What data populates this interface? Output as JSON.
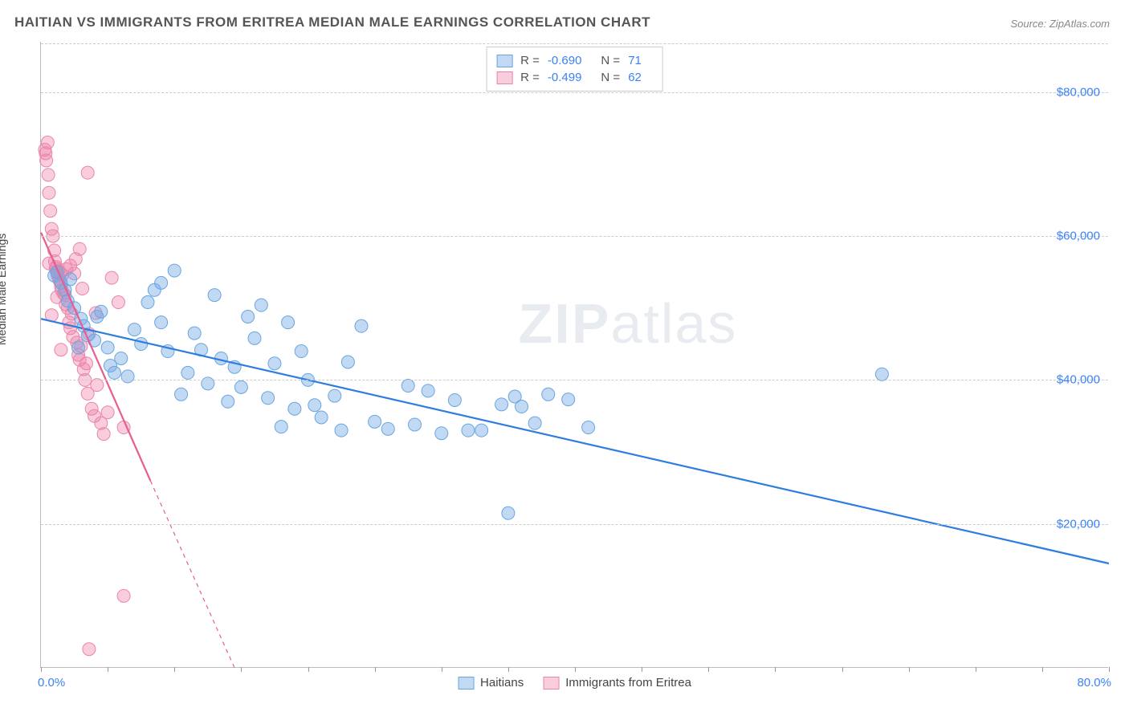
{
  "title": "HAITIAN VS IMMIGRANTS FROM ERITREA MEDIAN MALE EARNINGS CORRELATION CHART",
  "source": "Source: ZipAtlas.com",
  "ylabel": "Median Male Earnings",
  "watermark_zip": "ZIP",
  "watermark_atlas": "atlas",
  "chart": {
    "type": "scatter",
    "xlim": [
      0,
      80
    ],
    "ylim": [
      0,
      87000
    ],
    "x_axis_min_label": "0.0%",
    "x_axis_max_label": "80.0%",
    "xtick_positions": [
      0,
      5,
      10,
      15,
      20,
      25,
      30,
      35,
      40,
      45,
      50,
      55,
      60,
      65,
      70,
      75,
      80
    ],
    "ytick_values": [
      20000,
      40000,
      60000,
      80000
    ],
    "ytick_labels": [
      "$20,000",
      "$40,000",
      "$60,000",
      "$80,000"
    ],
    "grid_color": "#cccccc",
    "background_color": "#ffffff",
    "series": [
      {
        "name": "Haitians",
        "color_fill": "rgba(120,170,230,0.45)",
        "color_stroke": "#6aa5e0",
        "trend_color": "#2e7de0",
        "trend_solid": true,
        "R_label": "R =",
        "R": "-0.690",
        "N_label": "N =",
        "N": "71",
        "trend_start": {
          "x": 0,
          "y": 48500
        },
        "trend_end": {
          "x": 80,
          "y": 14500
        },
        "points": [
          [
            1,
            54500
          ],
          [
            1.2,
            55000
          ],
          [
            1.5,
            53500
          ],
          [
            1.8,
            52500
          ],
          [
            2,
            51000
          ],
          [
            2.2,
            54000
          ],
          [
            2.5,
            50000
          ],
          [
            2.8,
            44500
          ],
          [
            3,
            48500
          ],
          [
            3.2,
            47500
          ],
          [
            3.5,
            46200
          ],
          [
            4,
            45500
          ],
          [
            4.2,
            48800
          ],
          [
            4.5,
            49500
          ],
          [
            5,
            44500
          ],
          [
            5.2,
            42000
          ],
          [
            5.5,
            41000
          ],
          [
            6,
            43000
          ],
          [
            6.5,
            40500
          ],
          [
            7,
            47000
          ],
          [
            7.5,
            45000
          ],
          [
            8,
            50800
          ],
          [
            8.5,
            52500
          ],
          [
            9,
            48000
          ],
          [
            9.5,
            44000
          ],
          [
            10,
            55200
          ],
          [
            10.5,
            38000
          ],
          [
            11,
            41000
          ],
          [
            11.5,
            46500
          ],
          [
            12,
            44200
          ],
          [
            12.5,
            39500
          ],
          [
            13,
            51800
          ],
          [
            13.5,
            43000
          ],
          [
            14,
            37000
          ],
          [
            14.5,
            41800
          ],
          [
            15,
            39000
          ],
          [
            15.5,
            48800
          ],
          [
            16,
            45800
          ],
          [
            16.5,
            50400
          ],
          [
            17,
            37500
          ],
          [
            17.5,
            42300
          ],
          [
            18,
            33500
          ],
          [
            18.5,
            48000
          ],
          [
            19,
            36000
          ],
          [
            19.5,
            44000
          ],
          [
            20,
            40000
          ],
          [
            20.5,
            36500
          ],
          [
            21,
            34800
          ],
          [
            22,
            37800
          ],
          [
            22.5,
            33000
          ],
          [
            23,
            42500
          ],
          [
            24,
            47500
          ],
          [
            25,
            34200
          ],
          [
            26,
            33200
          ],
          [
            27.5,
            39200
          ],
          [
            28,
            33800
          ],
          [
            29,
            38500
          ],
          [
            30,
            32600
          ],
          [
            31,
            37200
          ],
          [
            32,
            33000
          ],
          [
            33,
            33000
          ],
          [
            34.5,
            36600
          ],
          [
            35.5,
            37700
          ],
          [
            36,
            36300
          ],
          [
            37,
            34000
          ],
          [
            38,
            38000
          ],
          [
            39.5,
            37300
          ],
          [
            41,
            33400
          ],
          [
            63,
            40800
          ],
          [
            35,
            21500
          ],
          [
            9,
            53500
          ]
        ]
      },
      {
        "name": "Immigrants from Eritrea",
        "color_fill": "rgba(240,130,170,0.40)",
        "color_stroke": "#e886aa",
        "trend_color": "#e75d90",
        "trend_solid": false,
        "R_label": "R =",
        "R": "-0.499",
        "N_label": "N =",
        "N": "62",
        "trend_start": {
          "x": 0,
          "y": 60500
        },
        "trend_end_solid": {
          "x": 8.2,
          "y": 26000
        },
        "trend_end_dashed": {
          "x": 14.5,
          "y": 0
        },
        "points": [
          [
            0.3,
            72000
          ],
          [
            0.35,
            71500
          ],
          [
            0.4,
            70500
          ],
          [
            0.5,
            73000
          ],
          [
            0.55,
            68500
          ],
          [
            0.6,
            66000
          ],
          [
            0.7,
            63500
          ],
          [
            0.8,
            61000
          ],
          [
            0.9,
            60000
          ],
          [
            1,
            58000
          ],
          [
            1.05,
            56500
          ],
          [
            1.1,
            55500
          ],
          [
            1.15,
            55700
          ],
          [
            1.2,
            55000
          ],
          [
            1.25,
            54500
          ],
          [
            1.3,
            55200
          ],
          [
            1.35,
            54000
          ],
          [
            1.4,
            53800
          ],
          [
            1.45,
            54800
          ],
          [
            1.5,
            53000
          ],
          [
            1.55,
            52500
          ],
          [
            1.6,
            54600
          ],
          [
            1.7,
            52000
          ],
          [
            1.8,
            51800
          ],
          [
            1.85,
            50500
          ],
          [
            1.9,
            55400
          ],
          [
            2,
            50000
          ],
          [
            2.1,
            48000
          ],
          [
            2.2,
            47200
          ],
          [
            2.3,
            49200
          ],
          [
            2.4,
            46000
          ],
          [
            2.5,
            54800
          ],
          [
            2.6,
            56800
          ],
          [
            2.7,
            45200
          ],
          [
            2.8,
            43500
          ],
          [
            2.9,
            42800
          ],
          [
            3,
            44700
          ],
          [
            3.1,
            52700
          ],
          [
            3.2,
            41500
          ],
          [
            3.3,
            40000
          ],
          [
            3.4,
            42300
          ],
          [
            3.5,
            38100
          ],
          [
            3.6,
            46400
          ],
          [
            3.8,
            36000
          ],
          [
            4,
            35000
          ],
          [
            4.2,
            39300
          ],
          [
            4.5,
            34000
          ],
          [
            4.7,
            32500
          ],
          [
            5,
            35500
          ],
          [
            5.3,
            54200
          ],
          [
            5.8,
            50800
          ],
          [
            6.2,
            33400
          ],
          [
            3.5,
            68800
          ],
          [
            1.5,
            44200
          ],
          [
            0.8,
            49000
          ],
          [
            1.2,
            51500
          ],
          [
            2.2,
            55900
          ],
          [
            6.2,
            10000
          ],
          [
            3.6,
            2600
          ],
          [
            2.9,
            58200
          ],
          [
            4.1,
            49300
          ],
          [
            0.6,
            56200
          ]
        ]
      }
    ],
    "marker_radius": 8,
    "marker_stroke_width": 1,
    "trend_line_width": 2.2
  },
  "legend_bottom": {
    "series1_label": "Haitians",
    "series2_label": "Immigrants from Eritrea"
  }
}
